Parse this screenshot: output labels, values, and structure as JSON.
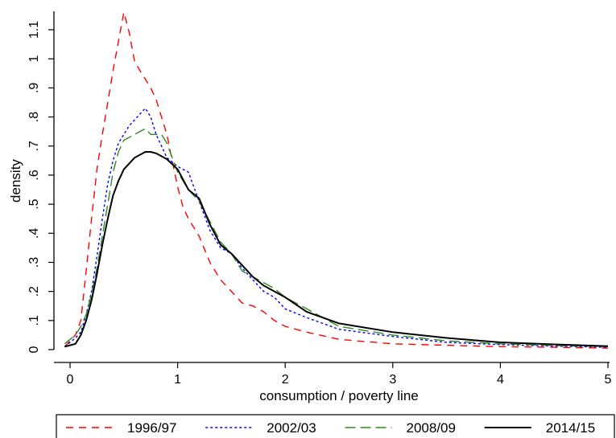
{
  "chart_data": {
    "type": "line",
    "title": "",
    "xlabel": "consumption / poverty line",
    "ylabel": "density",
    "xlim": [
      -0.1,
      5
    ],
    "ylim": [
      0,
      1.2
    ],
    "x_ticks": [
      0,
      1,
      2,
      3,
      4,
      5
    ],
    "x_tick_labels": [
      "0",
      "1",
      "2",
      "3",
      "4",
      "5"
    ],
    "y_ticks": [
      0,
      0.1,
      0.2,
      0.3,
      0.4,
      0.5,
      0.6,
      0.7,
      0.8,
      0.9,
      1.0,
      1.1
    ],
    "y_tick_labels": [
      "0",
      ".1",
      ".2",
      ".3",
      ".4",
      ".5",
      ".6",
      ".7",
      ".8",
      ".9",
      "1",
      "1.1"
    ],
    "grid": false,
    "legend_position": "bottom",
    "series": [
      {
        "name": "1996/97",
        "color": "#ff0000",
        "dash": "long-dash",
        "x": [
          -0.05,
          0.05,
          0.1,
          0.15,
          0.2,
          0.25,
          0.3,
          0.35,
          0.4,
          0.45,
          0.5,
          0.55,
          0.6,
          0.65,
          0.7,
          0.75,
          0.8,
          0.9,
          1.0,
          1.05,
          1.1,
          1.2,
          1.3,
          1.4,
          1.5,
          1.6,
          1.7,
          1.8,
          1.9,
          2.0,
          2.2,
          2.5,
          3.0,
          3.5,
          4.0,
          4.5,
          5.0
        ],
        "y": [
          0.01,
          0.05,
          0.1,
          0.27,
          0.45,
          0.62,
          0.74,
          0.85,
          0.96,
          1.06,
          1.16,
          1.09,
          0.99,
          0.96,
          0.93,
          0.9,
          0.86,
          0.74,
          0.56,
          0.49,
          0.45,
          0.39,
          0.3,
          0.24,
          0.2,
          0.16,
          0.15,
          0.13,
          0.1,
          0.08,
          0.06,
          0.035,
          0.02,
          0.015,
          0.01,
          0.008,
          0.005
        ]
      },
      {
        "name": "2002/03",
        "color": "#0000ff",
        "dash": "short-dash",
        "x": [
          -0.05,
          0.05,
          0.1,
          0.15,
          0.2,
          0.25,
          0.3,
          0.35,
          0.4,
          0.45,
          0.5,
          0.55,
          0.6,
          0.65,
          0.7,
          0.75,
          0.8,
          0.85,
          0.9,
          1.0,
          1.1,
          1.2,
          1.3,
          1.4,
          1.5,
          1.6,
          1.7,
          1.8,
          1.9,
          2.0,
          2.2,
          2.5,
          3.0,
          3.5,
          4.0,
          4.5,
          5.0
        ],
        "y": [
          0.01,
          0.04,
          0.06,
          0.12,
          0.2,
          0.32,
          0.45,
          0.57,
          0.65,
          0.71,
          0.74,
          0.77,
          0.79,
          0.81,
          0.83,
          0.8,
          0.74,
          0.7,
          0.66,
          0.63,
          0.61,
          0.51,
          0.41,
          0.35,
          0.33,
          0.28,
          0.24,
          0.2,
          0.18,
          0.14,
          0.11,
          0.07,
          0.045,
          0.025,
          0.017,
          0.012,
          0.008
        ]
      },
      {
        "name": "2008/09",
        "color": "#2e8b22",
        "dash": "longer-dash",
        "x": [
          -0.05,
          0.05,
          0.1,
          0.15,
          0.2,
          0.25,
          0.3,
          0.35,
          0.4,
          0.45,
          0.5,
          0.55,
          0.6,
          0.65,
          0.7,
          0.75,
          0.8,
          0.85,
          0.9,
          1.0,
          1.1,
          1.2,
          1.3,
          1.4,
          1.5,
          1.6,
          1.7,
          1.8,
          1.9,
          2.0,
          2.2,
          2.5,
          3.0,
          3.5,
          4.0,
          4.5,
          5.0
        ],
        "y": [
          0.02,
          0.05,
          0.08,
          0.12,
          0.19,
          0.28,
          0.39,
          0.5,
          0.61,
          0.68,
          0.72,
          0.73,
          0.74,
          0.75,
          0.76,
          0.74,
          0.74,
          0.74,
          0.71,
          0.61,
          0.55,
          0.51,
          0.44,
          0.37,
          0.33,
          0.27,
          0.25,
          0.23,
          0.21,
          0.18,
          0.14,
          0.08,
          0.05,
          0.03,
          0.02,
          0.014,
          0.01
        ]
      },
      {
        "name": "2014/15",
        "color": "#000000",
        "dash": "solid",
        "x": [
          -0.05,
          0.05,
          0.1,
          0.15,
          0.2,
          0.25,
          0.3,
          0.35,
          0.4,
          0.45,
          0.5,
          0.55,
          0.6,
          0.65,
          0.7,
          0.75,
          0.8,
          0.9,
          1.0,
          1.1,
          1.2,
          1.3,
          1.4,
          1.5,
          1.6,
          1.7,
          1.8,
          1.9,
          2.0,
          2.2,
          2.5,
          3.0,
          3.5,
          4.0,
          4.5,
          5.0
        ],
        "y": [
          0.01,
          0.02,
          0.05,
          0.1,
          0.17,
          0.26,
          0.36,
          0.45,
          0.53,
          0.58,
          0.62,
          0.64,
          0.66,
          0.67,
          0.68,
          0.68,
          0.675,
          0.655,
          0.62,
          0.55,
          0.52,
          0.43,
          0.36,
          0.33,
          0.29,
          0.25,
          0.22,
          0.2,
          0.18,
          0.13,
          0.09,
          0.06,
          0.04,
          0.025,
          0.018,
          0.012
        ]
      }
    ]
  }
}
